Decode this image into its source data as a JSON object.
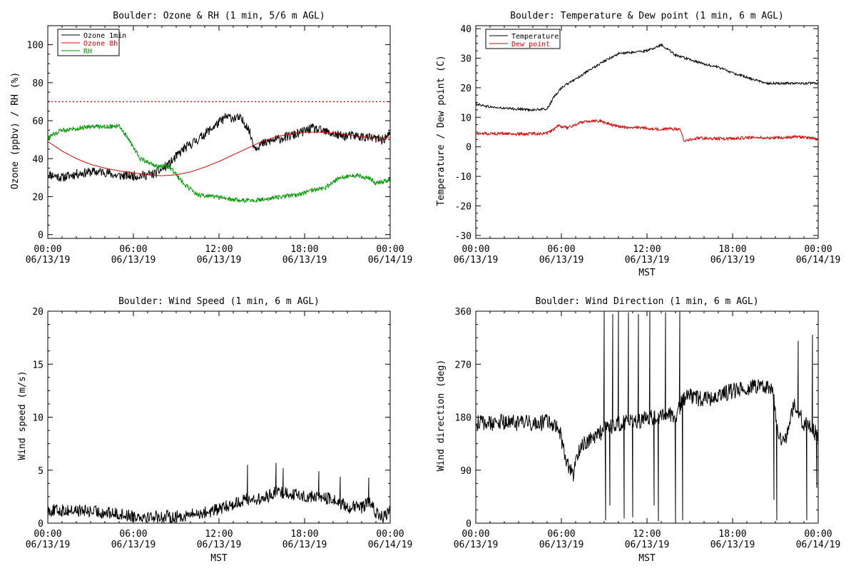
{
  "chart_data": [
    {
      "type": "line",
      "title": "Boulder: Ozone & RH (1 min, 5/6 m AGL)",
      "xlabel": "",
      "ylabel": "Ozone (ppbv) / RH (%)",
      "x_ticks": [
        "00:00\n06/13/19",
        "06:00\n06/13/19",
        "12:00\n06/13/19",
        "18:00\n06/13/19",
        "00:00\n06/14/19"
      ],
      "xlim_hours": [
        0,
        24
      ],
      "ylim": [
        -2,
        110
      ],
      "yticks": [
        0,
        20,
        40,
        60,
        80,
        100
      ],
      "legend": "top-left",
      "reference_line": {
        "y": 70,
        "color": "#dd0000",
        "style": "dotted"
      },
      "series": [
        {
          "name": "Ozone 1min",
          "color": "#000000",
          "noise": 2.5,
          "x_hours": [
            0,
            1,
            2,
            3,
            4,
            4.8,
            5.5,
            6.5,
            7.5,
            8.5,
            9.5,
            10.5,
            11.5,
            12.5,
            13.5,
            14,
            14.5,
            15.5,
            16.5,
            17.5,
            18.5,
            19.5,
            20.5,
            21.5,
            22.5,
            23.5,
            24
          ],
          "y": [
            32,
            30,
            32,
            33,
            33,
            31,
            31,
            31,
            32,
            37,
            45,
            50,
            56,
            62,
            61,
            57,
            46,
            49,
            51,
            53,
            56,
            54,
            52,
            52,
            51,
            50,
            53
          ]
        },
        {
          "name": "Ozone 8h",
          "color": "#dd0000",
          "noise": 0,
          "x_hours": [
            0,
            1,
            2,
            3,
            4,
            5,
            6,
            7,
            8,
            9,
            10,
            11,
            12,
            13,
            14,
            15,
            16,
            17,
            18,
            19,
            20,
            21,
            22,
            23,
            24
          ],
          "y": [
            49,
            44,
            40,
            37,
            35,
            33.5,
            32.5,
            31.5,
            31,
            31.5,
            33,
            35.5,
            38.5,
            42,
            45.5,
            49,
            51.5,
            53,
            54,
            54,
            53.5,
            52.5,
            51.5,
            51,
            51
          ]
        },
        {
          "name": "RH",
          "color": "#009900",
          "noise": 1.2,
          "x_hours": [
            0,
            1,
            2,
            3,
            4,
            5,
            5.5,
            6.5,
            7.5,
            8.5,
            9.5,
            10.5,
            11.5,
            12.5,
            13.5,
            14.5,
            15.5,
            16.5,
            17.5,
            18.5,
            19.5,
            20.5,
            21.5,
            22.5,
            23,
            24
          ],
          "y": [
            51,
            55,
            56,
            57,
            57,
            57,
            52,
            40,
            36,
            36,
            27,
            21,
            20,
            19,
            18,
            18,
            19,
            20,
            21,
            23,
            25,
            30,
            31,
            30,
            27,
            29
          ]
        }
      ]
    },
    {
      "type": "line",
      "title": "Boulder: Temperature & Dew point (1 min, 6 m AGL)",
      "xlabel": "MST",
      "ylabel": "Temperature / Dew point (C)",
      "x_ticks": [
        "00:00\n06/13/19",
        "06:00\n06/13/19",
        "12:00\n06/13/19",
        "18:00\n06/13/19",
        "00:00\n06/14/19"
      ],
      "xlim_hours": [
        0,
        24
      ],
      "ylim": [
        -31,
        41
      ],
      "yticks": [
        -30,
        -20,
        -10,
        0,
        10,
        20,
        30,
        40
      ],
      "legend": "top-left",
      "series": [
        {
          "name": "Temperature",
          "color": "#000000",
          "noise": 0.4,
          "x_hours": [
            0,
            1,
            2,
            3,
            4,
            5,
            5.5,
            6,
            7,
            8,
            9,
            10,
            11,
            12,
            13,
            13.5,
            14,
            15,
            16,
            17,
            18,
            19,
            20,
            20.5,
            21,
            22,
            23,
            24
          ],
          "y": [
            14.5,
            13.5,
            13,
            12.8,
            12.5,
            12.8,
            17,
            20,
            23,
            26,
            29,
            31.5,
            32,
            32.5,
            34.5,
            33,
            31,
            29.5,
            28,
            27,
            25,
            23.5,
            22,
            21.5,
            21.5,
            21.5,
            21.5,
            21.5
          ]
        },
        {
          "name": "Dew point",
          "color": "#dd0000",
          "noise": 0.5,
          "x_hours": [
            0,
            1,
            2,
            3,
            4,
            5,
            5.8,
            6.5,
            7.5,
            8.5,
            9.5,
            10.5,
            11.5,
            12.5,
            13.5,
            14.3,
            14.6,
            15.5,
            16.5,
            17.5,
            18.5,
            19.5,
            20.5,
            21.5,
            22.5,
            23.5,
            24
          ],
          "y": [
            4.5,
            4.5,
            4.5,
            4.3,
            4.5,
            4.5,
            7,
            6.5,
            8.5,
            9,
            7.5,
            6.5,
            6.5,
            6,
            6,
            6,
            2,
            3,
            2.8,
            2.8,
            3,
            3.2,
            3,
            3,
            3.5,
            3,
            2.5
          ]
        }
      ]
    },
    {
      "type": "line",
      "title": "Boulder: Wind Speed (1 min, 6 m AGL)",
      "xlabel": "MST",
      "ylabel": "Wind speed (m/s)",
      "x_ticks": [
        "00:00\n06/13/19",
        "06:00\n06/13/19",
        "12:00\n06/13/19",
        "18:00\n06/13/19",
        "00:00\n06/14/19"
      ],
      "xlim_hours": [
        0,
        24
      ],
      "ylim": [
        0,
        20
      ],
      "yticks": [
        0,
        5,
        10,
        15,
        20
      ],
      "series": [
        {
          "name": "",
          "color": "#000000",
          "noise": 0.6,
          "x_hours": [
            0,
            2,
            4,
            6,
            8,
            9,
            10,
            11,
            12,
            13,
            14,
            15,
            16,
            17,
            18,
            19,
            20,
            21,
            22,
            22.5,
            23,
            23.5,
            24
          ],
          "y": [
            1.2,
            1.2,
            1.0,
            0.7,
            0.6,
            0.6,
            0.8,
            1.0,
            1.3,
            1.8,
            2.3,
            2.2,
            3.0,
            2.8,
            2.5,
            2.5,
            2.2,
            1.5,
            1.5,
            2.0,
            1.0,
            0.5,
            1.2
          ],
          "spikes": [
            [
              14.0,
              5.5
            ],
            [
              16.0,
              5.7
            ],
            [
              16.5,
              5.2
            ],
            [
              19.0,
              4.9
            ],
            [
              20.5,
              4.4
            ],
            [
              22.5,
              4.3
            ]
          ]
        }
      ]
    },
    {
      "type": "line",
      "title": "Boulder: Wind Direction (1 min, 6 m AGL)",
      "xlabel": "MST",
      "ylabel": "Wind direction (deg)",
      "x_ticks": [
        "00:00\n06/13/19",
        "06:00\n06/13/19",
        "12:00\n06/13/19",
        "18:00\n06/13/19",
        "00:00\n06/14/19"
      ],
      "xlim_hours": [
        0,
        24
      ],
      "ylim": [
        0,
        360
      ],
      "yticks": [
        0,
        90,
        180,
        270,
        360
      ],
      "series": [
        {
          "name": "",
          "color": "#000000",
          "noise": 14,
          "x_hours": [
            0,
            1,
            2,
            3,
            4,
            5,
            5.8,
            6.3,
            6.8,
            7.3,
            7.8,
            8.5,
            9.5,
            10.5,
            11.5,
            12.5,
            13.5,
            14,
            14.5,
            15,
            16,
            17,
            18,
            19,
            20,
            20.8,
            21.2,
            21.7,
            22.3,
            23,
            24
          ],
          "y": [
            170,
            170,
            172,
            170,
            170,
            172,
            165,
            110,
            80,
            130,
            140,
            150,
            165,
            170,
            175,
            180,
            185,
            180,
            210,
            215,
            210,
            215,
            225,
            230,
            235,
            230,
            150,
            140,
            200,
            170,
            150
          ],
          "spikes": [
            [
              9.0,
              360
            ],
            [
              9.1,
              5
            ],
            [
              9.6,
              355
            ],
            [
              10.0,
              360
            ],
            [
              10.4,
              8
            ],
            [
              10.7,
              358
            ],
            [
              11.0,
              10
            ],
            [
              11.4,
              355
            ],
            [
              12.2,
              360
            ],
            [
              12.8,
              3
            ],
            [
              13.3,
              358
            ],
            [
              14.0,
              3
            ],
            [
              14.3,
              360
            ],
            [
              14.5,
              5
            ],
            [
              9.4,
              30
            ],
            [
              12.5,
              30
            ],
            [
              20.9,
              40
            ],
            [
              21.1,
              5
            ],
            [
              22.6,
              310
            ],
            [
              23.2,
              5
            ],
            [
              23.6,
              320
            ],
            [
              23.9,
              60
            ]
          ]
        }
      ]
    }
  ]
}
